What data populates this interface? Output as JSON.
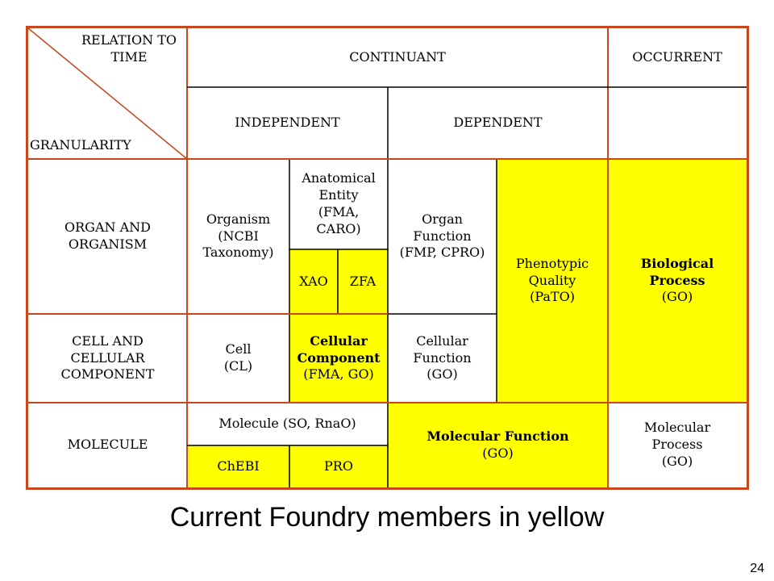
{
  "header": {
    "relation_to_time": "RELATION TO TIME",
    "granularity": "GRANULARITY",
    "continuant": "CONTINUANT",
    "occurrent": "OCCURRENT",
    "independent": "INDEPENDENT",
    "dependent": "DEPENDENT"
  },
  "rows": {
    "organ": "ORGAN AND ORGANISM",
    "cell": "CELL AND CELLULAR COMPONENT",
    "molecule": "MOLECULE"
  },
  "cells": {
    "organism": "Organism (NCBI Taxonomy)",
    "anatomical_entity": "Anatomical Entity (FMA, CARO)",
    "xao": "XAO",
    "zfa": "ZFA",
    "organ_function": "Organ Function (FMP, CPRO)",
    "phenotypic_quality": "Phenotypic Quality (PaTO)",
    "biological_process_name": "Biological Process",
    "biological_process_src": "(GO)",
    "cell": "Cell (CL)",
    "cellular_component_name": "Cellular Component",
    "cellular_component_src": "(FMA, GO)",
    "cellular_function": "Cellular Function (GO)",
    "molecule": "Molecule (SO, RnaO)",
    "chebi": "ChEBI",
    "pro": "PRO",
    "molecular_function_name": "Molecular Function",
    "molecular_function_src": "(GO)",
    "molecular_process": "Molecular Process (GO)"
  },
  "caption": "Current Foundry members in yellow",
  "page_number": "24",
  "colors": {
    "border": "#c8471c",
    "highlight": "#ffff00"
  }
}
